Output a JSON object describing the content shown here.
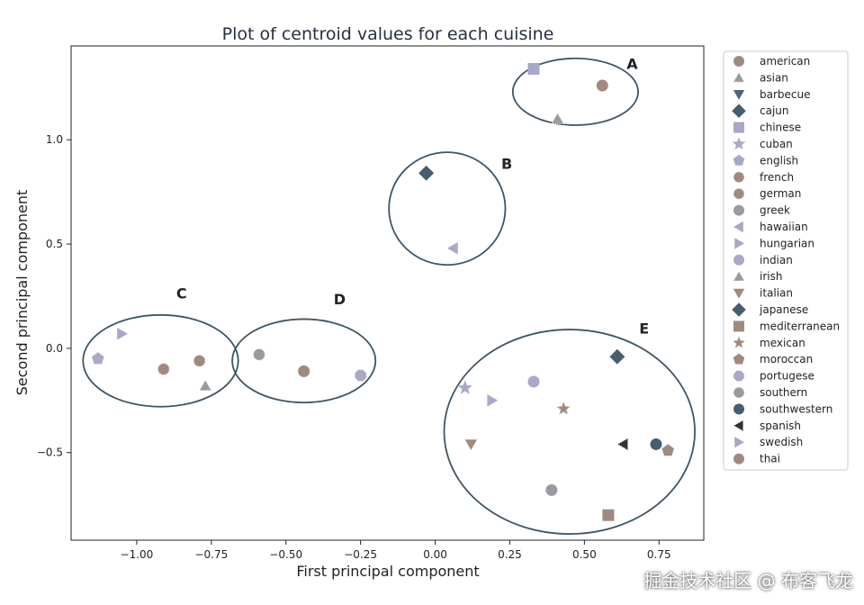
{
  "watermark": "掘金技术社区 @ 布客飞龙",
  "chart_data": {
    "type": "scatter",
    "title": "Plot of centroid values for each cuisine",
    "xlabel": "First principal component",
    "ylabel": "Second principal component",
    "xlim": [
      -1.22,
      0.9
    ],
    "ylim": [
      -0.92,
      1.45
    ],
    "xticks": [
      -1.0,
      -0.75,
      -0.5,
      -0.25,
      0.0,
      0.25,
      0.5,
      0.75
    ],
    "xtick_labels": [
      "−1.00",
      "−0.75",
      "−0.50",
      "−0.25",
      "0.00",
      "0.25",
      "0.50",
      "0.75"
    ],
    "yticks": [
      -0.5,
      0.0,
      0.5,
      1.0
    ],
    "ytick_labels": [
      "−0.5",
      "0.0",
      "0.5",
      "1.0"
    ],
    "grid": false,
    "legend_position": "outside-right",
    "series": [
      {
        "name": "american",
        "x": 0.56,
        "y": 1.26,
        "marker": "circle",
        "color": "#a08a80"
      },
      {
        "name": "asian",
        "x": 0.41,
        "y": 1.1,
        "marker": "triangle-up-dotted",
        "color": "#9a9a9a"
      },
      {
        "name": "barbecue",
        "x": null,
        "y": null,
        "marker": "triangle-down",
        "color": "#4a6680"
      },
      {
        "name": "cajun",
        "x": -0.03,
        "y": 0.84,
        "marker": "diamond",
        "color": "#465e6e"
      },
      {
        "name": "chinese",
        "x": 0.33,
        "y": 1.34,
        "marker": "square",
        "color": "#a8a8c8"
      },
      {
        "name": "cuban",
        "x": 0.1,
        "y": -0.19,
        "marker": "star",
        "color": "#a8a8c8"
      },
      {
        "name": "english",
        "x": -1.13,
        "y": -0.05,
        "marker": "pentagon",
        "color": "#a8a8c8"
      },
      {
        "name": "french",
        "x": -0.91,
        "y": -0.1,
        "marker": "circle-dotted",
        "color": "#a08a80"
      },
      {
        "name": "german",
        "x": -0.79,
        "y": -0.06,
        "marker": "circle-dotted",
        "color": "#a08a80"
      },
      {
        "name": "greek",
        "x": 0.39,
        "y": -0.68,
        "marker": "circle",
        "color": "#9a9aa2"
      },
      {
        "name": "hawaiian",
        "x": 0.06,
        "y": 0.48,
        "marker": "triangle-left",
        "color": "#a8a8c8"
      },
      {
        "name": "hungarian",
        "x": 0.19,
        "y": -0.25,
        "marker": "triangle-right",
        "color": "#a8a8c8"
      },
      {
        "name": "indian",
        "x": 0.33,
        "y": -0.16,
        "marker": "circle",
        "color": "#a8a8c8"
      },
      {
        "name": "irish",
        "x": -0.77,
        "y": -0.18,
        "marker": "triangle-up-dotted",
        "color": "#9a9a9a"
      },
      {
        "name": "italian",
        "x": 0.12,
        "y": -0.46,
        "marker": "triangle-down",
        "color": "#a08a80"
      },
      {
        "name": "japanese",
        "x": 0.61,
        "y": -0.04,
        "marker": "diamond",
        "color": "#465e6e"
      },
      {
        "name": "mediterranean",
        "x": 0.58,
        "y": -0.8,
        "marker": "square",
        "color": "#a08a80"
      },
      {
        "name": "mexican",
        "x": 0.43,
        "y": -0.29,
        "marker": "star-dotted",
        "color": "#a08a80"
      },
      {
        "name": "moroccan",
        "x": 0.78,
        "y": -0.49,
        "marker": "pentagon",
        "color": "#a08a80"
      },
      {
        "name": "portugese",
        "x": -0.25,
        "y": -0.13,
        "marker": "octagon",
        "color": "#a8a8c8"
      },
      {
        "name": "southern",
        "x": -0.59,
        "y": -0.03,
        "marker": "circle-dotted",
        "color": "#9a9a9a"
      },
      {
        "name": "southwestern",
        "x": 0.74,
        "y": -0.46,
        "marker": "circle",
        "color": "#465e6e"
      },
      {
        "name": "spanish",
        "x": 0.63,
        "y": -0.46,
        "marker": "triangle-left-dotted",
        "color": "#333333"
      },
      {
        "name": "swedish",
        "x": -1.05,
        "y": 0.07,
        "marker": "triangle-right",
        "color": "#a8a8c8"
      },
      {
        "name": "thai",
        "x": -0.44,
        "y": -0.11,
        "marker": "circle",
        "color": "#a08a80"
      }
    ],
    "clusters": [
      {
        "label": "A",
        "cx": 0.47,
        "cy": 1.23,
        "rx": 0.21,
        "ry": 0.16,
        "label_x": 0.66,
        "label_y": 1.34
      },
      {
        "label": "B",
        "cx": 0.04,
        "cy": 0.67,
        "rx": 0.195,
        "ry": 0.27,
        "label_x": 0.24,
        "label_y": 0.86
      },
      {
        "label": "C",
        "cx": -0.92,
        "cy": -0.06,
        "rx": 0.26,
        "ry": 0.22,
        "label_x": -0.85,
        "label_y": 0.24
      },
      {
        "label": "D",
        "cx": -0.44,
        "cy": -0.06,
        "rx": 0.24,
        "ry": 0.2,
        "label_x": -0.32,
        "label_y": 0.21
      },
      {
        "label": "E",
        "cx": 0.45,
        "cy": -0.4,
        "rx": 0.42,
        "ry": 0.49,
        "label_x": 0.7,
        "label_y": 0.07
      }
    ]
  }
}
